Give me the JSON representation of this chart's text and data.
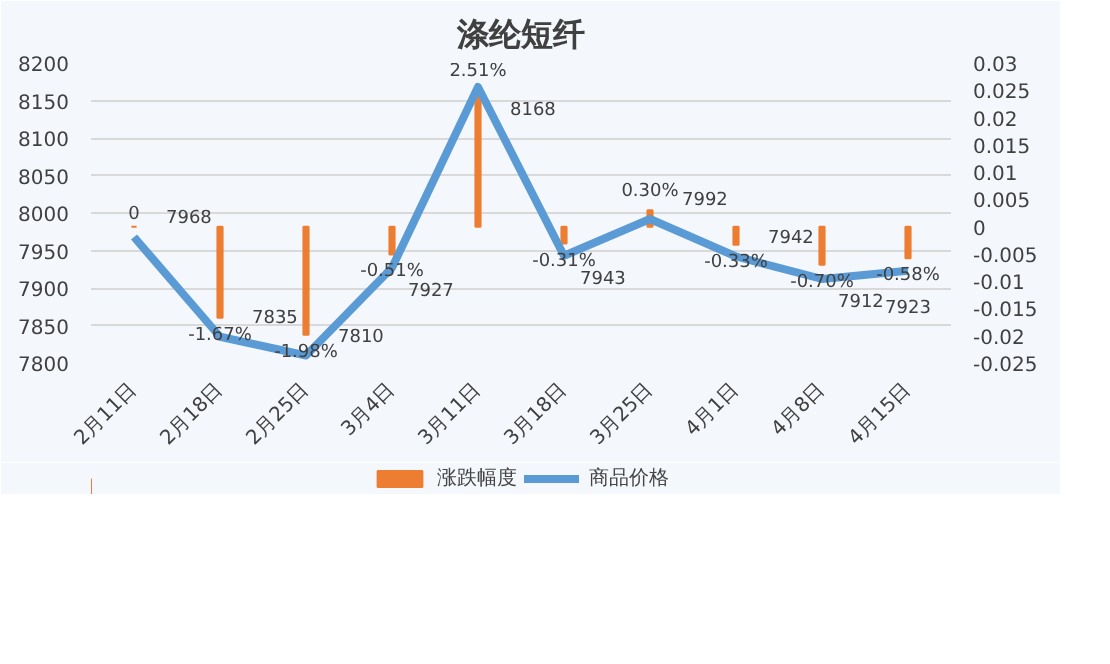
{
  "chart_data": {
    "type": "bar",
    "title": "涤纶短纤",
    "categories": [
      "2月11日",
      "2月18日",
      "2月25日",
      "3月4日",
      "3月11日",
      "3月18日",
      "3月25日",
      "4月1日",
      "4月8日",
      "4月15日"
    ],
    "series": [
      {
        "name": "涨跌幅度",
        "axis": "y2",
        "color": "#ed7d31",
        "values": [
          0,
          -0.0167,
          -0.0198,
          -0.0051,
          0.0251,
          -0.0031,
          0.003,
          -0.0033,
          -0.007,
          -0.0058
        ],
        "value_labels": [
          "0",
          "-1.67%",
          "-1.98%",
          "-0.51%",
          "2.51%",
          "-0.31%",
          "0.30%",
          "-0.33%",
          "-0.70%",
          "-0.58%"
        ]
      },
      {
        "name": "商品价格",
        "type": "line",
        "color": "#5b9bd5",
        "values": [
          7968,
          7835,
          7810,
          7927,
          8168,
          7943,
          7992,
          7942,
          7912,
          7923
        ],
        "data_labels": true
      }
    ],
    "ylim": [
      7800,
      8200
    ],
    "yticks": [
      7800,
      7850,
      7900,
      7950,
      8000,
      8050,
      8100,
      8150,
      8200
    ],
    "y2lim": [
      -0.025,
      0.03
    ],
    "y2ticks": [
      -0.025,
      -0.02,
      -0.015,
      -0.01,
      -0.005,
      0,
      0.005,
      0.01,
      0.015,
      0.02,
      0.025,
      0.03
    ],
    "grid": "y",
    "legend": "bottom"
  }
}
